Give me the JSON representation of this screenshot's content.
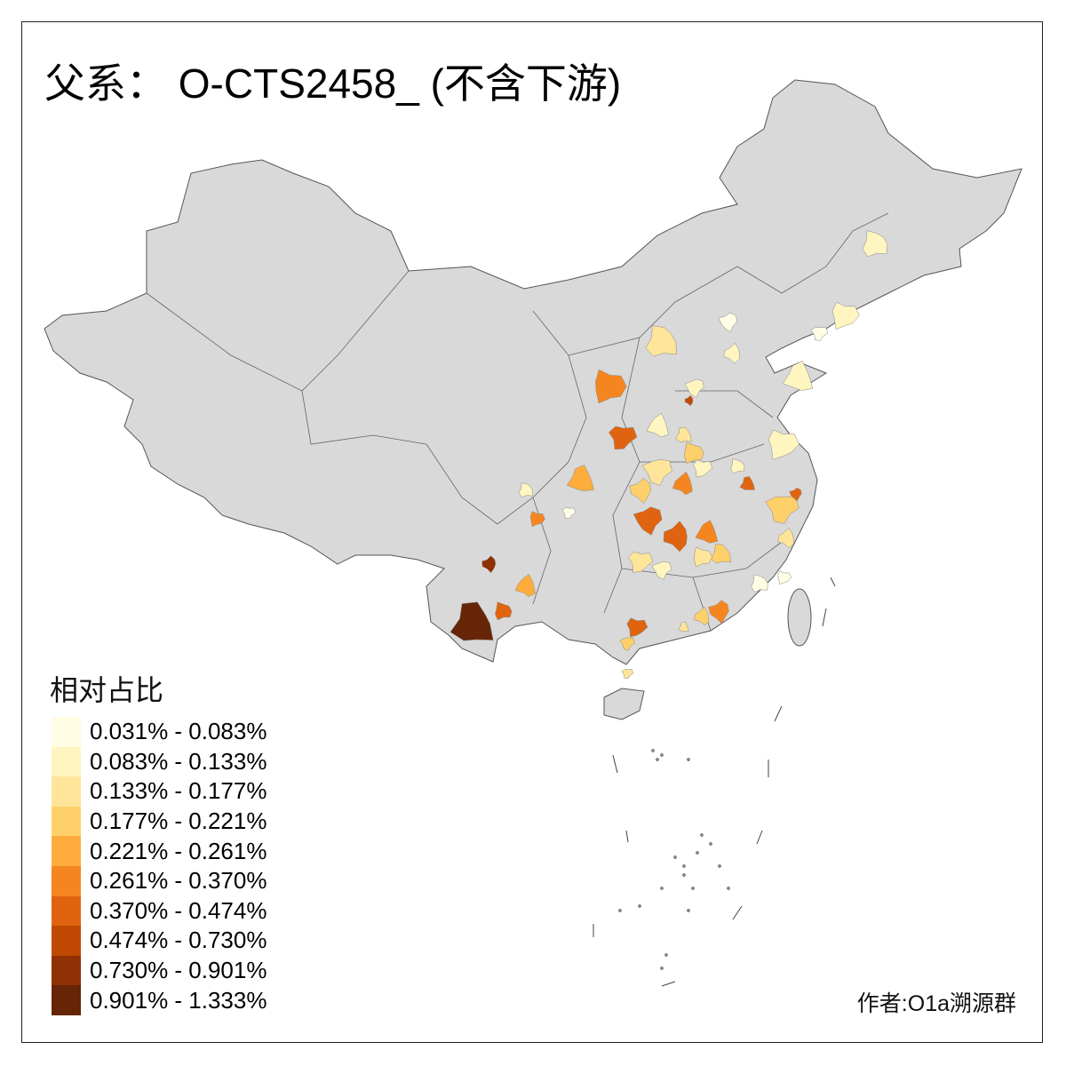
{
  "title": "父系： O-CTS2458_ (不含下游)",
  "legend": {
    "title": "相对占比",
    "classes": [
      {
        "label": "0.031% - 0.083%",
        "color": "#FFFDE3"
      },
      {
        "label": "0.083% - 0.133%",
        "color": "#FFF5C0"
      },
      {
        "label": "0.133% - 0.177%",
        "color": "#FEE59A"
      },
      {
        "label": "0.177% - 0.221%",
        "color": "#FED06A"
      },
      {
        "label": "0.221% - 0.261%",
        "color": "#FEAD3D"
      },
      {
        "label": "0.261% - 0.370%",
        "color": "#F5861F"
      },
      {
        "label": "0.370% - 0.474%",
        "color": "#E0640F"
      },
      {
        "label": "0.474% - 0.730%",
        "color": "#BF4803"
      },
      {
        "label": "0.730% - 0.901%",
        "color": "#903005"
      },
      {
        "label": "0.901% - 1.333%",
        "color": "#662506"
      }
    ]
  },
  "map": {
    "base_color": "#D9D9D9",
    "border_color": "#555555",
    "shaded_region_classes": [
      1,
      1,
      0,
      0,
      1,
      1,
      2,
      5,
      6,
      1,
      7,
      1,
      2,
      3,
      1,
      2,
      3,
      5,
      6,
      1,
      1,
      3,
      6,
      2,
      4,
      1,
      5,
      0,
      6,
      6,
      5,
      3,
      2,
      2,
      1,
      8,
      4,
      9,
      6,
      6,
      3,
      5,
      3,
      2,
      0,
      0,
      2
    ]
  },
  "author": "作者:O1a溯源群"
}
